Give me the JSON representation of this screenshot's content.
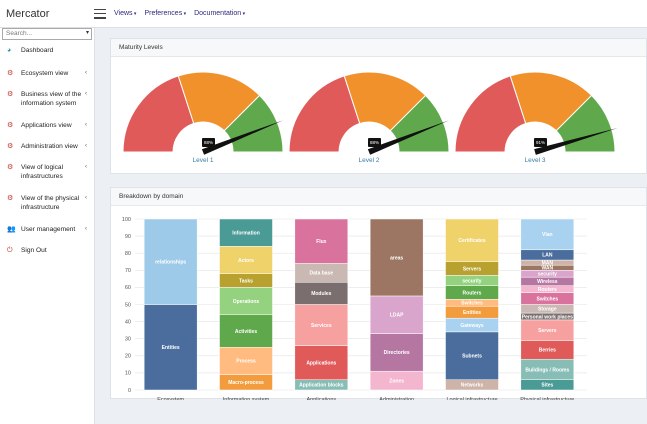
{
  "app": {
    "title": "Mercator"
  },
  "topnav": [
    "Views",
    "Preferences",
    "Documentation"
  ],
  "search": {
    "placeholder": "Search..."
  },
  "sidebar": [
    {
      "label": "Dashboard",
      "icon": "dashboard-icon",
      "chev": false,
      "lines": 1
    },
    {
      "label": "Ecosystem view",
      "icon": "cogs-icon",
      "chev": true,
      "lines": 1
    },
    {
      "label": "Business view of the information system",
      "icon": "cogs-icon",
      "chev": true,
      "lines": 2
    },
    {
      "label": "Applications view",
      "icon": "cogs-icon",
      "chev": true,
      "lines": 1
    },
    {
      "label": "Administration view",
      "icon": "cogs-icon",
      "chev": true,
      "lines": 1
    },
    {
      "label": "View of logical infrastructures",
      "icon": "cogs-icon",
      "chev": true,
      "lines": 2
    },
    {
      "label": "View of the physical infrastructure",
      "icon": "cogs-icon",
      "chev": true,
      "lines": 2
    },
    {
      "label": "User management",
      "icon": "users-icon",
      "chev": true,
      "lines": 1
    },
    {
      "label": "Sign Out",
      "icon": "signout-icon",
      "chev": false,
      "lines": 1
    }
  ],
  "maturity": {
    "title": "Maturity Levels",
    "colors": {
      "red": "#e05a5a",
      "orange": "#f0912c",
      "green": "#5fa94c"
    },
    "gauges": [
      {
        "label": "Level 1",
        "value": 88,
        "display": "88%"
      },
      {
        "label": "Level 2",
        "value": 88,
        "display": "88%"
      },
      {
        "label": "Level 3",
        "value": 91,
        "display": "91%"
      }
    ]
  },
  "chart_data": {
    "type": "bar",
    "title": "Breakdown by domain",
    "stacked": true,
    "normalized": true,
    "ylim": [
      0,
      100
    ],
    "yticks": [
      0,
      10,
      20,
      30,
      40,
      50,
      60,
      70,
      80,
      90,
      100
    ],
    "grid": true,
    "categories": [
      "Ecosystem",
      "Information system",
      "Applications",
      "Administration",
      "Logical infrastructure",
      "Physical infrastructure"
    ],
    "stacks": [
      [
        {
          "label": "Entities",
          "value": 50,
          "color": "#4a6d9e"
        },
        {
          "label": "relationships",
          "value": 50,
          "color": "#9ecae9"
        }
      ],
      [
        {
          "label": "Macro-process",
          "value": 9,
          "color": "#f39c3d"
        },
        {
          "label": "Process",
          "value": 16,
          "color": "#ffbb80"
        },
        {
          "label": "Activities",
          "value": 19,
          "color": "#5fa94c"
        },
        {
          "label": "Operations",
          "value": 16,
          "color": "#94d27f"
        },
        {
          "label": "Tasks",
          "value": 8,
          "color": "#b8a12e"
        },
        {
          "label": "Actors",
          "value": 16,
          "color": "#f0d26a"
        },
        {
          "label": "Information",
          "value": 16,
          "color": "#4a9a95"
        }
      ],
      [
        {
          "label": "Application blocks",
          "value": 6,
          "color": "#88bdb6"
        },
        {
          "label": "Applications",
          "value": 20,
          "color": "#e05a5a"
        },
        {
          "label": "Services",
          "value": 24,
          "color": "#f7a0a0"
        },
        {
          "label": "Modules",
          "value": 13,
          "color": "#7a6e6e"
        },
        {
          "label": "Data base",
          "value": 11,
          "color": "#c9b9b2"
        },
        {
          "label": "Flux",
          "value": 26,
          "color": "#d9739e"
        }
      ],
      [
        {
          "label": "Zones",
          "value": 11,
          "color": "#f4b6cf"
        },
        {
          "label": "Directories",
          "value": 22,
          "color": "#b576a2"
        },
        {
          "label": "LDAP",
          "value": 22,
          "color": "#d9a5cc"
        },
        {
          "label": "areas",
          "value": 45,
          "color": "#9c7662"
        }
      ],
      [
        {
          "label": "Networks",
          "value": 6,
          "color": "#cdb3a8"
        },
        {
          "label": "Subnets",
          "value": 28,
          "color": "#4a6d9e"
        },
        {
          "label": "Gateways",
          "value": 8,
          "color": "#a8d2ef"
        },
        {
          "label": "Entities",
          "value": 7,
          "color": "#f39c3d"
        },
        {
          "label": "Switches",
          "value": 4,
          "color": "#ffbb80"
        },
        {
          "label": "Routers",
          "value": 8,
          "color": "#5fa94c"
        },
        {
          "label": "security",
          "value": 6,
          "color": "#94d27f"
        },
        {
          "label": "Servers",
          "value": 8,
          "color": "#b8a12e"
        },
        {
          "label": "Certificates",
          "value": 25,
          "color": "#f0d26a"
        }
      ],
      [
        {
          "label": "Sites",
          "value": 6,
          "color": "#4a9a95"
        },
        {
          "label": "Buildings / Rooms",
          "value": 12,
          "color": "#88bdb6"
        },
        {
          "label": "Berries",
          "value": 11,
          "color": "#e05a5a"
        },
        {
          "label": "Servers",
          "value": 12,
          "color": "#f7a0a0"
        },
        {
          "label": "Personal work places",
          "value": 4,
          "color": "#7a6e6e"
        },
        {
          "label": "Storage",
          "value": 5,
          "color": "#c9b9b2"
        },
        {
          "label": "Switches",
          "value": 7,
          "color": "#d9739e"
        },
        {
          "label": "Routers",
          "value": 4,
          "color": "#f4b6cf"
        },
        {
          "label": "Wireless",
          "value": 5,
          "color": "#b576a2"
        },
        {
          "label": "security",
          "value": 4,
          "color": "#d9a5cc"
        },
        {
          "label": "WAN",
          "value": 3,
          "color": "#9c7662"
        },
        {
          "label": "MAN",
          "value": 3,
          "color": "#cdb3a8"
        },
        {
          "label": "LAN",
          "value": 6,
          "color": "#4a6d9e"
        },
        {
          "label": "Vlan",
          "value": 18,
          "color": "#a8d2ef"
        }
      ]
    ]
  }
}
